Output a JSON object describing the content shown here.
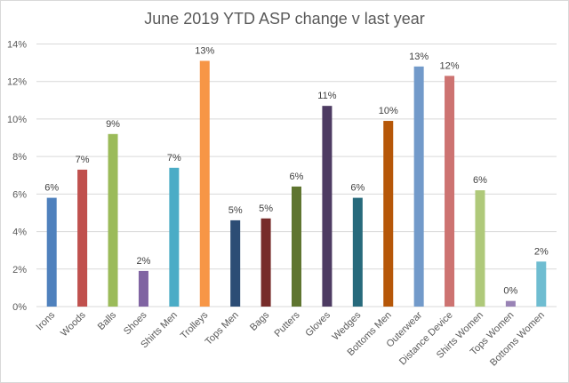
{
  "chart_data": {
    "type": "bar",
    "title": "June 2019 YTD ASP change v last year",
    "xlabel": "",
    "ylabel": "",
    "ylim": [
      0,
      14
    ],
    "y_ticks": [
      "0%",
      "2%",
      "4%",
      "6%",
      "8%",
      "10%",
      "12%",
      "14%"
    ],
    "grid": true,
    "legend": "none",
    "categories": [
      "Irons",
      "Woods",
      "Balls",
      "Shoes",
      "Shirts Men",
      "Trolleys",
      "Tops Men",
      "Bags",
      "Putters",
      "Gloves",
      "Wedges",
      "Bottoms Men",
      "Outerwear",
      "Distance Device",
      "Shirts Women",
      "Tops Women",
      "Bottoms Women"
    ],
    "values": [
      5.8,
      7.3,
      9.2,
      1.9,
      7.4,
      13.1,
      4.6,
      4.7,
      6.4,
      10.7,
      5.8,
      9.9,
      12.8,
      12.3,
      6.2,
      0.3,
      2.4
    ],
    "data_labels": [
      "6%",
      "7%",
      "9%",
      "2%",
      "7%",
      "13%",
      "5%",
      "5%",
      "6%",
      "11%",
      "6%",
      "10%",
      "13%",
      "12%",
      "6%",
      "0%",
      "2%"
    ],
    "colors": [
      "#4f81bd",
      "#c0504d",
      "#9bbb59",
      "#8064a2",
      "#4bacc6",
      "#f79646",
      "#2c4d75",
      "#772c2a",
      "#5f7530",
      "#4d3b62",
      "#276a7c",
      "#b65708",
      "#729aca",
      "#cd7371",
      "#afc97a",
      "#9983b5",
      "#6fbdd1"
    ]
  }
}
